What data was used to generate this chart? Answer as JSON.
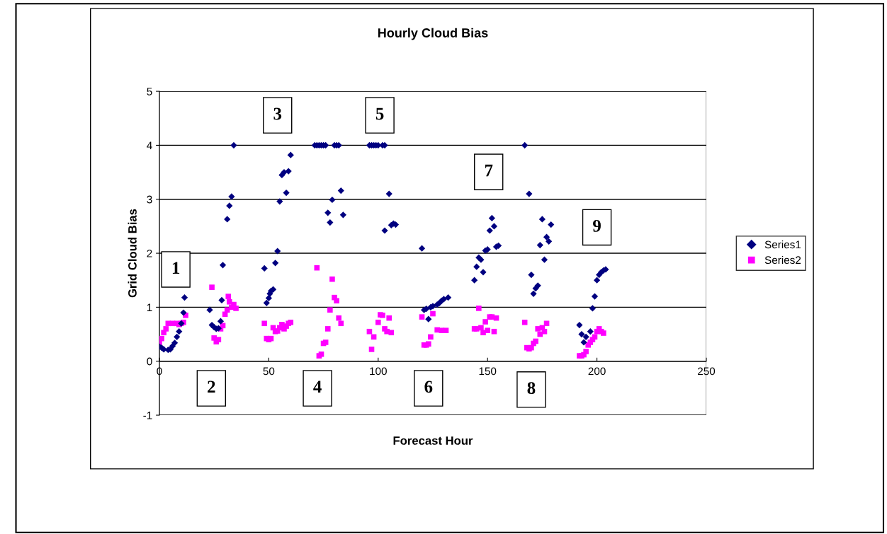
{
  "chart_data": {
    "type": "scatter",
    "title": "Hourly Cloud Bias",
    "xlabel": "Forecast Hour",
    "ylabel": "Grid Cloud Bias",
    "xlim": [
      0,
      250
    ],
    "xticks": [
      0,
      50,
      100,
      150,
      200,
      250
    ],
    "ylim": [
      -1,
      5
    ],
    "yticks": [
      -1,
      0,
      1,
      2,
      3,
      4,
      5
    ],
    "grid": "y",
    "legend": "right",
    "annotations": [
      "1",
      "2",
      "3",
      "4",
      "5",
      "6",
      "7",
      "8",
      "9"
    ],
    "series": [
      {
        "name": "Series1",
        "color": "#000080",
        "marker": "diamond",
        "x": [
          0,
          1,
          2,
          4,
          5,
          6,
          7,
          8,
          9,
          10,
          11,
          11.5,
          23,
          24,
          25,
          26,
          27,
          28,
          28.5,
          29,
          31,
          32,
          33,
          34,
          48,
          49,
          50,
          50.5,
          51,
          52,
          53,
          54,
          55,
          56,
          57,
          58,
          59,
          60,
          71,
          72,
          73,
          74,
          75,
          76,
          77,
          78,
          79,
          80,
          81,
          82,
          83,
          84,
          96,
          97,
          98,
          99,
          100,
          102,
          103,
          103,
          105,
          106,
          107,
          108,
          120,
          121,
          122,
          123,
          124,
          125,
          127,
          128,
          129,
          130,
          132,
          144,
          145,
          146,
          147,
          148,
          149,
          150,
          151,
          152,
          153,
          154,
          155,
          167,
          169,
          170,
          171,
          172,
          173,
          174,
          175,
          176,
          177,
          178,
          179,
          192,
          193,
          194,
          195,
          197,
          198,
          199,
          200,
          201,
          202,
          203,
          204
        ],
        "values": [
          0.27,
          0.25,
          0.22,
          0.21,
          0.22,
          0.28,
          0.34,
          0.45,
          0.55,
          0.7,
          0.9,
          1.18,
          0.95,
          0.67,
          0.63,
          0.6,
          0.61,
          0.74,
          1.13,
          1.78,
          2.63,
          2.88,
          3.05,
          4.0,
          1.72,
          1.08,
          1.17,
          1.25,
          1.3,
          1.33,
          1.82,
          2.04,
          2.96,
          3.45,
          3.5,
          3.12,
          3.52,
          3.82,
          4,
          4,
          4,
          4,
          4,
          4,
          2.75,
          2.57,
          2.99,
          4,
          4,
          4,
          3.16,
          2.71,
          4,
          4,
          4,
          4,
          4,
          4,
          4,
          2.42,
          3.1,
          2.52,
          2.55,
          2.53,
          2.09,
          0.95,
          0.97,
          0.78,
          1.0,
          1.02,
          1.05,
          1.08,
          1.12,
          1.15,
          1.18,
          1.5,
          1.75,
          1.92,
          1.88,
          1.65,
          2.05,
          2.07,
          2.42,
          2.65,
          2.5,
          2.12,
          2.14,
          4.0,
          3.1,
          1.6,
          1.25,
          1.35,
          1.4,
          2.15,
          2.63,
          1.88,
          2.3,
          2.22,
          2.53,
          0.67,
          0.5,
          0.35,
          0.45,
          0.55,
          0.98,
          1.2,
          1.5,
          1.6,
          1.65,
          1.68,
          1.7
        ]
      },
      {
        "name": "Series2",
        "color": "#ff00ff",
        "marker": "square",
        "x": [
          0,
          1,
          2,
          3,
          4,
          6,
          8,
          9,
          10,
          11,
          12,
          24,
          25,
          26,
          27,
          28,
          29,
          30,
          31,
          31.5,
          32,
          33,
          34,
          35,
          48,
          49,
          50,
          51,
          52,
          53,
          54,
          55,
          56,
          57,
          58,
          59,
          60,
          72,
          73,
          74,
          75,
          76,
          77,
          78,
          79,
          80,
          81,
          82,
          83,
          96,
          97,
          98,
          100,
          101,
          102,
          103,
          104,
          105,
          106,
          120,
          121,
          122,
          123,
          124,
          125,
          127,
          129,
          131,
          144,
          145,
          146,
          147,
          148,
          149,
          150,
          151,
          152,
          153,
          154,
          167,
          168,
          169,
          170,
          171,
          172,
          173,
          174,
          175,
          176,
          177,
          192,
          193,
          194,
          195,
          196,
          197,
          198,
          199,
          200,
          201,
          202,
          203
        ],
        "values": [
          0.35,
          0.42,
          0.53,
          0.6,
          0.7,
          0.7,
          0.7,
          0.68,
          0.7,
          0.72,
          0.85,
          1.37,
          0.43,
          0.36,
          0.4,
          0.6,
          0.66,
          0.87,
          0.95,
          1.2,
          1.1,
          1.0,
          1.05,
          0.98,
          0.7,
          0.42,
          0.4,
          0.42,
          0.62,
          0.55,
          0.56,
          0.62,
          0.68,
          0.6,
          0.65,
          0.7,
          0.72,
          1.73,
          0.1,
          0.13,
          0.33,
          0.35,
          0.6,
          0.95,
          1.52,
          1.18,
          1.12,
          0.8,
          0.7,
          0.55,
          0.22,
          0.45,
          0.72,
          0.86,
          0.85,
          0.6,
          0.55,
          0.8,
          0.53,
          0.82,
          0.3,
          0.3,
          0.32,
          0.45,
          0.88,
          0.58,
          0.57,
          0.57,
          0.6,
          0.6,
          0.98,
          0.62,
          0.53,
          0.73,
          0.57,
          0.82,
          0.82,
          0.55,
          0.8,
          0.72,
          0.25,
          0.23,
          0.25,
          0.33,
          0.37,
          0.6,
          0.5,
          0.62,
          0.55,
          0.7,
          0.1,
          0.1,
          0.12,
          0.18,
          0.3,
          0.35,
          0.4,
          0.45,
          0.55,
          0.6,
          0.55,
          0.52
        ]
      }
    ]
  }
}
